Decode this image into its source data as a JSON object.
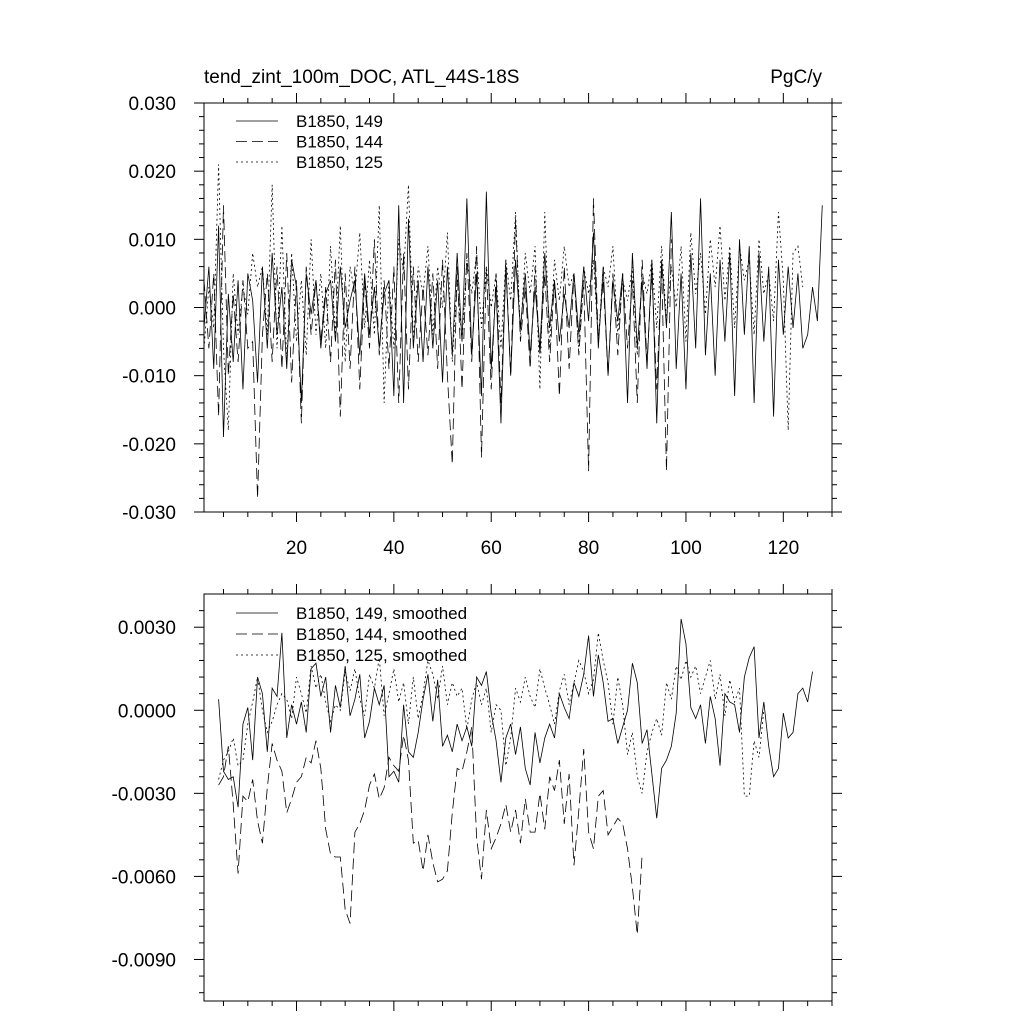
{
  "chart_data": [
    {
      "type": "line",
      "title": "tend_zint_100m_DOC, ATL_44S-18S",
      "units": "PgC/y",
      "xlabel": "",
      "ylabel": "",
      "xlim": [
        1,
        130
      ],
      "ylim": [
        -0.03,
        0.03
      ],
      "grid": false,
      "legend_position": "top-left",
      "x_ticks": [
        20,
        40,
        60,
        80,
        100,
        120
      ],
      "x_tick_labels": [
        "20",
        "40",
        "60",
        "80",
        "100",
        "120"
      ],
      "y_ticks": [
        0.03,
        0.02,
        0.01,
        0.0,
        -0.01,
        -0.02,
        -0.03
      ],
      "y_tick_labels": [
        "0.030",
        "0.020",
        "0.010",
        "0.000",
        "-0.010",
        "-0.020",
        "-0.030"
      ],
      "series": [
        {
          "name": "B1850, 149",
          "style": "solid",
          "x_start": 1,
          "values": [
            -0.003,
            0.006,
            -0.009,
            0.012,
            -0.019,
            0.002,
            -0.008,
            0.004,
            -0.012,
            0.005,
            0.001,
            -0.011,
            0.006,
            -0.006,
            0.008,
            -0.004,
            0.003,
            -0.009,
            0.007,
            0.003,
            -0.014,
            0.005,
            -0.001,
            0.004,
            -0.006,
            0.002,
            0.004,
            -0.005,
            0.006,
            -0.003,
            0.001,
            0.004,
            -0.007,
            0.005,
            -0.004,
            0.003,
            -0.006,
            0.002,
            0.004,
            -0.013,
            0.015,
            -0.014,
            0.013,
            -0.006,
            0.004,
            -0.008,
            0.006,
            -0.006,
            0.004,
            -0.011,
            0.006,
            -0.007,
            0.008,
            -0.005,
            0.016,
            -0.007,
            0.005,
            -0.013,
            0.017,
            -0.009,
            0.003,
            -0.017,
            0.006,
            -0.01,
            0.007,
            -0.003,
            0.005,
            -0.007,
            0.003,
            -0.006,
            0.008,
            -0.003,
            0.004,
            -0.005,
            0.002,
            -0.003,
            0.005,
            -0.004,
            0.006,
            -0.002,
            0.011,
            -0.006,
            0.006,
            -0.01,
            0.004,
            -0.002,
            0.005,
            -0.014,
            0.008,
            -0.006,
            0.004,
            -0.009,
            0.007,
            -0.017,
            0.007,
            -0.003,
            0.014,
            -0.009,
            0.005,
            -0.012,
            0.008,
            -0.006,
            0.016,
            -0.007,
            0.005,
            -0.01,
            0.007,
            -0.005,
            0.008,
            -0.013,
            0.01,
            -0.004,
            0.009,
            -0.014,
            0.008,
            -0.005,
            0.006,
            -0.016,
            0.007,
            -0.004,
            0.006,
            -0.003,
            0.005,
            -0.006,
            -0.004,
            0.003,
            -0.002,
            0.015
          ]
        },
        {
          "name": "B1850, 144",
          "style": "dashed",
          "x_start": 1,
          "values": [
            0.004,
            -0.006,
            0.005,
            -0.016,
            0.015,
            -0.01,
            0.002,
            -0.008,
            0.004,
            -0.006,
            -0.005,
            -0.028,
            -0.004,
            0.005,
            -0.008,
            0.006,
            -0.009,
            0.008,
            -0.011,
            0.004,
            -0.017,
            0.006,
            -0.004,
            0.004,
            -0.005,
            0.003,
            -0.008,
            0.007,
            -0.016,
            0.005,
            -0.009,
            0.006,
            -0.012,
            0.004,
            -0.006,
            0.01,
            -0.007,
            0.004,
            -0.009,
            0.006,
            -0.014,
            0.008,
            -0.012,
            0.006,
            -0.008,
            0.003,
            -0.007,
            0.005,
            -0.009,
            0.007,
            -0.01,
            -0.023,
            0.006,
            -0.012,
            0.008,
            -0.008,
            0.009,
            -0.022,
            0.006,
            -0.012,
            0.005,
            -0.014,
            0.007,
            -0.01,
            0.013,
            -0.005,
            0.003,
            -0.009,
            0.006,
            -0.007,
            0.005,
            -0.008,
            0.004,
            -0.013,
            0.006,
            -0.009,
            0.005,
            -0.007,
            0.004,
            -0.024,
            0.016,
            -0.005,
            0.004,
            -0.01,
            0.005,
            -0.007,
            0.005,
            -0.006,
            0.004,
            -0.014,
            0.007,
            -0.008,
            0.005,
            -0.012,
            0.006,
            -0.024,
            0.01
          ]
        },
        {
          "name": "B1850, 125",
          "style": "dotted",
          "x_start": 1,
          "values": [
            -0.006,
            0.003,
            -0.003,
            0.021,
            -0.006,
            -0.018,
            0.005,
            -0.004,
            0.003,
            -0.001,
            0.008,
            0.003,
            0.006,
            -0.004,
            0.018,
            -0.006,
            0.012,
            -0.008,
            0.008,
            -0.005,
            0.004,
            -0.007,
            0.01,
            -0.004,
            0.005,
            -0.006,
            0.009,
            -0.004,
            0.012,
            -0.008,
            0.006,
            0.002,
            0.011,
            -0.003,
            0.007,
            -0.004,
            0.015,
            -0.014,
            0.004,
            -0.006,
            0.01,
            0.005,
            0.018,
            -0.005,
            0.006,
            0.002,
            0.009,
            -0.004,
            0.006,
            0.0,
            0.011,
            -0.008,
            0.004,
            -0.005,
            0.007,
            0.002,
            0.008,
            -0.003,
            0.006,
            0.0,
            0.005,
            -0.006,
            0.007,
            0.001,
            0.014,
            -0.004,
            0.008,
            0.002,
            0.009,
            -0.012,
            0.014,
            -0.006,
            0.007,
            0.001,
            0.009,
            0.003,
            0.005,
            -0.006,
            0.006,
            0.002,
            0.007,
            -0.005,
            0.006,
            0.003,
            0.009,
            -0.004,
            0.004,
            0.001,
            0.006,
            -0.007,
            0.005,
            0.002,
            0.007,
            -0.003,
            0.009,
            -0.002,
            0.006,
            0.0,
            0.009,
            -0.005,
            0.011,
            0.002,
            0.008,
            -0.001,
            0.01,
            0.003,
            0.012,
            0.001,
            0.009,
            -0.003,
            0.009,
            0.004,
            0.007,
            -0.004,
            0.01,
            0.002,
            0.005,
            -0.002,
            0.014,
            0.004,
            -0.018,
            0.008,
            0.009,
            0.003
          ]
        }
      ]
    },
    {
      "type": "line",
      "title": "",
      "xlabel": "",
      "ylabel": "",
      "xlim": [
        1,
        130
      ],
      "ylim": [
        -0.0105,
        0.0042
      ],
      "grid": false,
      "legend_position": "top-left",
      "x_ticks": [
        20,
        40,
        60,
        80,
        100,
        120
      ],
      "x_tick_labels": [],
      "y_ticks": [
        0.003,
        0.0,
        -0.003,
        -0.006,
        -0.009
      ],
      "y_tick_labels": [
        "0.0030",
        "0.0000",
        "-0.0030",
        "-0.0060",
        "-0.0090"
      ],
      "series": [
        {
          "name": "B1850, 149, smoothed",
          "style": "solid",
          "x_start": 4,
          "values": [
            0.0004,
            -0.0022,
            -0.0025,
            -0.0024,
            -0.0035,
            -0.0005,
            0.0001,
            -0.0018,
            0.0012,
            0.0006,
            -0.0015,
            0.0008,
            0.0005,
            0.0028,
            -0.001,
            0.0002,
            -0.0005,
            0.0003,
            -0.0008,
            0.0015,
            0.0017,
            0.0005,
            0.0012,
            -0.0008,
            0.0009,
            0.0001,
            0.0016,
            -0.0002,
            0.0004,
            0.0013,
            -0.001,
            -0.0004,
            0.0008,
            0.0002,
            0.0009,
            -0.0024,
            -0.0022,
            -0.0026,
            0.0002,
            -0.0015,
            -0.0017,
            -0.0008,
            0.0004,
            0.0013,
            -0.0004,
            0.0011,
            -0.0013,
            -0.0009,
            -0.0015,
            -0.0005,
            -0.0011,
            -0.0006,
            -0.0013,
            0.0012,
            0.0009,
            0.0014,
            -0.0001,
            -0.0011,
            -0.0026,
            -0.001,
            -0.0005,
            -0.0016,
            -0.0006,
            -0.0021,
            -0.0027,
            -0.0008,
            -0.0019,
            -0.001,
            -0.0005,
            -0.001,
            0.0006,
            0.0001,
            -0.0003,
            0.001,
            0.0005,
            0.0013,
            0.0027,
            0.0005,
            0.002,
            0.001,
            -0.0004,
            -0.0003,
            -0.0012,
            -0.0006,
            0.0,
            0.0017,
            0.001,
            -0.0012,
            -0.0007,
            -0.0023,
            -0.0039,
            -0.0021,
            -0.0018,
            -0.0013,
            -0.0001,
            0.0033,
            0.0024,
            0.0001,
            -0.0003,
            0.0002,
            -0.0012,
            0.0005,
            -0.0003,
            -0.002,
            0.0006,
            0.0003,
            0.0002,
            -0.0008,
            0.0012,
            0.0019,
            0.0023,
            -0.001,
            0.0003,
            -0.0013,
            -0.0024,
            -0.0021,
            -0.0001,
            -0.001,
            -0.0008,
            0.0006,
            0.0008,
            0.0003,
            0.0014
          ]
        },
        {
          "name": "B1850, 144, smoothed",
          "style": "dashed",
          "x_start": 4,
          "values": [
            -0.0027,
            -0.0024,
            -0.0013,
            -0.0034,
            -0.0059,
            -0.0031,
            -0.0033,
            -0.0025,
            -0.004,
            -0.0048,
            -0.0028,
            -0.0012,
            -0.0018,
            -0.0022,
            -0.0037,
            -0.0032,
            -0.0026,
            -0.0024,
            -0.0017,
            -0.0019,
            -0.0011,
            -0.0021,
            -0.0043,
            -0.0052,
            -0.0053,
            -0.0053,
            -0.0072,
            -0.0077,
            -0.0044,
            -0.0041,
            -0.0036,
            -0.0027,
            -0.0023,
            -0.0032,
            -0.0028,
            -0.0017,
            -0.002,
            -0.0022,
            -0.0009,
            -0.0018,
            -0.0048,
            -0.0047,
            -0.0058,
            -0.0045,
            -0.0055,
            -0.0062,
            -0.0061,
            -0.0058,
            -0.0037,
            -0.0021,
            -0.0022,
            -0.0015,
            -0.0006,
            -0.0046,
            -0.0061,
            -0.0036,
            -0.005,
            -0.0046,
            -0.0041,
            -0.0034,
            -0.0044,
            -0.0036,
            -0.0048,
            -0.0032,
            -0.0044,
            -0.0044,
            -0.003,
            -0.0043,
            -0.0024,
            -0.0029,
            -0.0018,
            -0.0041,
            -0.0023,
            -0.0056,
            -0.0036,
            -0.0014,
            -0.0044,
            -0.005,
            -0.0031,
            -0.0029,
            -0.0045,
            -0.0042,
            -0.0039,
            -0.0041,
            -0.005,
            -0.0064,
            -0.0081,
            -0.0052
          ]
        },
        {
          "name": "B1850, 125, smoothed",
          "style": "dotted",
          "x_start": 4,
          "values": [
            -0.0025,
            -0.0018,
            -0.0015,
            -0.001,
            -0.002,
            -0.0018,
            -0.0005,
            0.0003,
            0.0012,
            0.0,
            -0.0008,
            -0.0004,
            0.0002,
            0.0006,
            0.0004,
            -0.0003,
            0.0012,
            0.0006,
            -0.0001,
            0.0016,
            0.0008,
            0.0013,
            0.0003,
            -0.0004,
            0.0002,
            0.0,
            0.0014,
            0.0007,
            0.0015,
            0.0004,
            -0.0002,
            0.0013,
            0.0008,
            0.0019,
            -0.0002,
            0.0006,
            0.0015,
            0.0003,
            0.001,
            -0.0005,
            0.0012,
            -0.0003,
            0.0006,
            0.0018,
            0.0013,
            0.0004,
            0.0016,
            0.0002,
            0.001,
            0.0005,
            0.0008,
            -0.0007,
            0.0004,
            0.001,
            0.0002,
            0.0008,
            -0.0008,
            0.0002,
            0.0,
            -0.002,
            -0.001,
            0.0008,
            0.0003,
            0.0012,
            0.0005,
            0.0001,
            0.0015,
            0.0008,
            0.0002,
            -0.0005,
            0.0007,
            0.0013,
            0.0002,
            0.001,
            0.0018,
            0.0014,
            0.0006,
            0.0011,
            0.0028,
            0.0018,
            0.001,
            -0.0005,
            0.0012,
            0.0002,
            -0.0016,
            -0.0008,
            -0.0024,
            -0.003,
            -0.0015,
            -0.0008,
            -0.0003,
            -0.0009,
            0.001,
            0.0004,
            0.0016,
            0.0011,
            0.0018,
            0.0012,
            0.0016,
            0.0006,
            0.0012,
            0.0018,
            0.0004,
            0.0013,
            -0.0002,
            0.0011,
            0.0003,
            0.0008,
            -0.0031,
            -0.0031,
            -0.0011,
            -0.0017,
            0.0
          ]
        }
      ]
    }
  ]
}
